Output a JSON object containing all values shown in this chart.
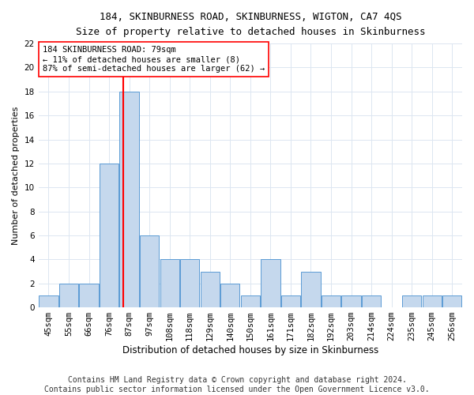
{
  "title1": "184, SKINBURNESS ROAD, SKINBURNESS, WIGTON, CA7 4QS",
  "title2": "Size of property relative to detached houses in Skinburness",
  "xlabel": "Distribution of detached houses by size in Skinburness",
  "ylabel": "Number of detached properties",
  "bin_labels": [
    "45sqm",
    "55sqm",
    "66sqm",
    "76sqm",
    "87sqm",
    "97sqm",
    "108sqm",
    "118sqm",
    "129sqm",
    "140sqm",
    "150sqm",
    "161sqm",
    "171sqm",
    "182sqm",
    "192sqm",
    "203sqm",
    "214sqm",
    "224sqm",
    "235sqm",
    "245sqm",
    "256sqm"
  ],
  "values": [
    1,
    2,
    2,
    12,
    18,
    6,
    4,
    4,
    3,
    2,
    1,
    4,
    1,
    3,
    1,
    1,
    1,
    0,
    1,
    1,
    1
  ],
  "bar_color": "#c5d8ed",
  "bar_edge_color": "#5b9bd5",
  "vline_x": 3.7,
  "annotation_line1": "184 SKINBURNESS ROAD: 79sqm",
  "annotation_line2": "← 11% of detached houses are smaller (8)",
  "annotation_line3": "87% of semi-detached houses are larger (62) →",
  "annotation_box_color": "white",
  "annotation_border_color": "red",
  "vline_color": "red",
  "grid_color": "#dce6f1",
  "footnote1": "Contains HM Land Registry data © Crown copyright and database right 2024.",
  "footnote2": "Contains public sector information licensed under the Open Government Licence v3.0.",
  "ylim": [
    0,
    22
  ],
  "yticks": [
    0,
    2,
    4,
    6,
    8,
    10,
    12,
    14,
    16,
    18,
    20,
    22
  ],
  "title1_fontsize": 9,
  "title2_fontsize": 9,
  "xlabel_fontsize": 8.5,
  "ylabel_fontsize": 8,
  "tick_fontsize": 7.5,
  "annotation_fontsize": 7.5,
  "footnote_fontsize": 7
}
